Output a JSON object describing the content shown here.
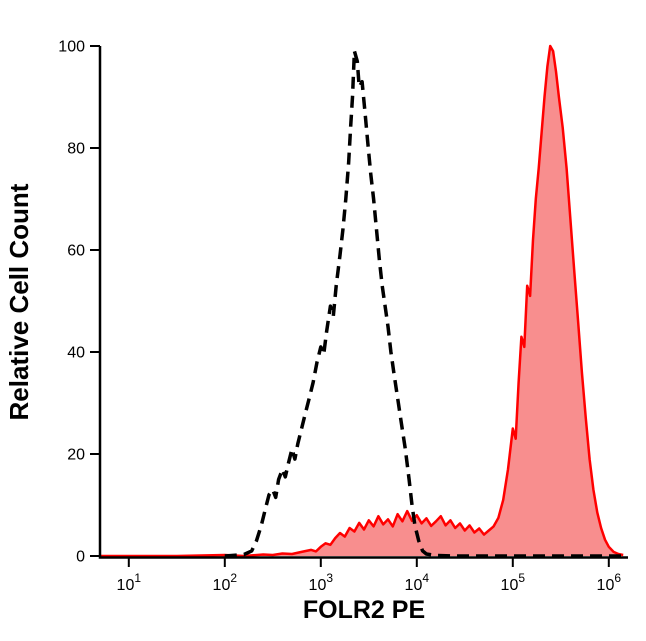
{
  "figure": {
    "background": "#ffffff"
  },
  "chart_data": {
    "type": "area",
    "title": "",
    "xlabel": "FOLR2 PE",
    "ylabel": "Relative Cell Count",
    "x_scale": "log10",
    "x_log_range": [
      0.7,
      6.2
    ],
    "ylim": [
      0,
      100
    ],
    "y_ticks": [
      0,
      20,
      40,
      60,
      80,
      100
    ],
    "x_ticks": [
      1,
      2,
      3,
      4,
      5,
      6
    ],
    "x_tick_base": "10",
    "grid": false,
    "legend": false,
    "colors": {
      "axis": "#000000",
      "dashed_curve": "#000000",
      "red_stroke": "#ff0000",
      "red_fill": "#f88e8e"
    },
    "series": [
      {
        "id": "folr2-pe-stained",
        "name": "red filled curve",
        "color": "#ff0000",
        "width": 2.5,
        "dash": "",
        "fill": "#f88e8e",
        "points": [
          [
            0.7,
            0
          ],
          [
            1.0,
            0
          ],
          [
            1.5,
            0
          ],
          [
            2.0,
            0.2
          ],
          [
            2.2,
            0
          ],
          [
            2.4,
            0.3
          ],
          [
            2.5,
            0.2
          ],
          [
            2.6,
            0.5
          ],
          [
            2.7,
            0.4
          ],
          [
            2.8,
            0.8
          ],
          [
            2.9,
            1.2
          ],
          [
            2.95,
            0.9
          ],
          [
            3.0,
            1.8
          ],
          [
            3.05,
            2.5
          ],
          [
            3.1,
            2.2
          ],
          [
            3.15,
            3.5
          ],
          [
            3.2,
            4.5
          ],
          [
            3.25,
            3.8
          ],
          [
            3.3,
            5.5
          ],
          [
            3.35,
            4.8
          ],
          [
            3.4,
            6.5
          ],
          [
            3.45,
            5.2
          ],
          [
            3.5,
            7
          ],
          [
            3.55,
            5.8
          ],
          [
            3.6,
            7.8
          ],
          [
            3.65,
            6.2
          ],
          [
            3.7,
            7.2
          ],
          [
            3.75,
            5.8
          ],
          [
            3.8,
            8.2
          ],
          [
            3.85,
            6.8
          ],
          [
            3.9,
            8.8
          ],
          [
            3.95,
            6.9
          ],
          [
            4.0,
            8
          ],
          [
            4.05,
            6.4
          ],
          [
            4.1,
            7.4
          ],
          [
            4.15,
            5.9
          ],
          [
            4.2,
            6.8
          ],
          [
            4.25,
            7.8
          ],
          [
            4.3,
            6
          ],
          [
            4.35,
            7
          ],
          [
            4.4,
            5.5
          ],
          [
            4.45,
            6.4
          ],
          [
            4.5,
            5
          ],
          [
            4.55,
            6
          ],
          [
            4.6,
            4.6
          ],
          [
            4.65,
            5.4
          ],
          [
            4.7,
            4.2
          ],
          [
            4.75,
            5
          ],
          [
            4.8,
            5.8
          ],
          [
            4.85,
            7.5
          ],
          [
            4.9,
            11
          ],
          [
            4.95,
            17
          ],
          [
            5.0,
            25
          ],
          [
            5.03,
            23
          ],
          [
            5.06,
            34
          ],
          [
            5.09,
            43
          ],
          [
            5.12,
            41
          ],
          [
            5.15,
            53
          ],
          [
            5.18,
            51
          ],
          [
            5.21,
            62
          ],
          [
            5.24,
            70
          ],
          [
            5.27,
            76
          ],
          [
            5.3,
            83
          ],
          [
            5.33,
            90
          ],
          [
            5.36,
            96
          ],
          [
            5.39,
            100
          ],
          [
            5.42,
            99
          ],
          [
            5.45,
            95
          ],
          [
            5.48,
            90
          ],
          [
            5.52,
            84
          ],
          [
            5.56,
            76
          ],
          [
            5.6,
            66
          ],
          [
            5.64,
            56
          ],
          [
            5.68,
            46
          ],
          [
            5.72,
            36
          ],
          [
            5.76,
            27
          ],
          [
            5.8,
            19
          ],
          [
            5.84,
            13
          ],
          [
            5.88,
            8.5
          ],
          [
            5.92,
            5.5
          ],
          [
            5.96,
            3.2
          ],
          [
            6.0,
            1.8
          ],
          [
            6.05,
            0.8
          ],
          [
            6.1,
            0.4
          ],
          [
            6.15,
            0.2
          ]
        ]
      },
      {
        "id": "control-dashed",
        "name": "black dashed curve",
        "color": "#000000",
        "width": 3.5,
        "dash": "12 7",
        "fill": "none",
        "points": [
          [
            2.0,
            0
          ],
          [
            2.2,
            0.3
          ],
          [
            2.28,
            1
          ],
          [
            2.33,
            3
          ],
          [
            2.38,
            6
          ],
          [
            2.42,
            9
          ],
          [
            2.46,
            12
          ],
          [
            2.5,
            13
          ],
          [
            2.53,
            11.5
          ],
          [
            2.56,
            15
          ],
          [
            2.6,
            17
          ],
          [
            2.63,
            15.5
          ],
          [
            2.66,
            18
          ],
          [
            2.7,
            21
          ],
          [
            2.73,
            19
          ],
          [
            2.76,
            22
          ],
          [
            2.8,
            25
          ],
          [
            2.84,
            28
          ],
          [
            2.88,
            31
          ],
          [
            2.92,
            34
          ],
          [
            2.96,
            38
          ],
          [
            3.0,
            41
          ],
          [
            3.03,
            39.5
          ],
          [
            3.06,
            44
          ],
          [
            3.1,
            49
          ],
          [
            3.13,
            47
          ],
          [
            3.16,
            53
          ],
          [
            3.2,
            59
          ],
          [
            3.23,
            64
          ],
          [
            3.26,
            70
          ],
          [
            3.29,
            77
          ],
          [
            3.31,
            84
          ],
          [
            3.33,
            90
          ],
          [
            3.35,
            99
          ],
          [
            3.38,
            97
          ],
          [
            3.4,
            92
          ],
          [
            3.43,
            93
          ],
          [
            3.46,
            87
          ],
          [
            3.49,
            81
          ],
          [
            3.52,
            75
          ],
          [
            3.55,
            70
          ],
          [
            3.58,
            64
          ],
          [
            3.61,
            58
          ],
          [
            3.64,
            53
          ],
          [
            3.67,
            49
          ],
          [
            3.7,
            45
          ],
          [
            3.73,
            40
          ],
          [
            3.76,
            36
          ],
          [
            3.8,
            31
          ],
          [
            3.84,
            26
          ],
          [
            3.88,
            21
          ],
          [
            3.92,
            15
          ],
          [
            3.95,
            10
          ],
          [
            3.98,
            6
          ],
          [
            4.02,
            3
          ],
          [
            4.06,
            1
          ],
          [
            4.1,
            0.4
          ],
          [
            4.2,
            0.1
          ],
          [
            4.4,
            0
          ],
          [
            4.8,
            0
          ],
          [
            5.2,
            0
          ],
          [
            5.6,
            0
          ],
          [
            6.0,
            0
          ],
          [
            6.15,
            0
          ]
        ]
      }
    ]
  }
}
